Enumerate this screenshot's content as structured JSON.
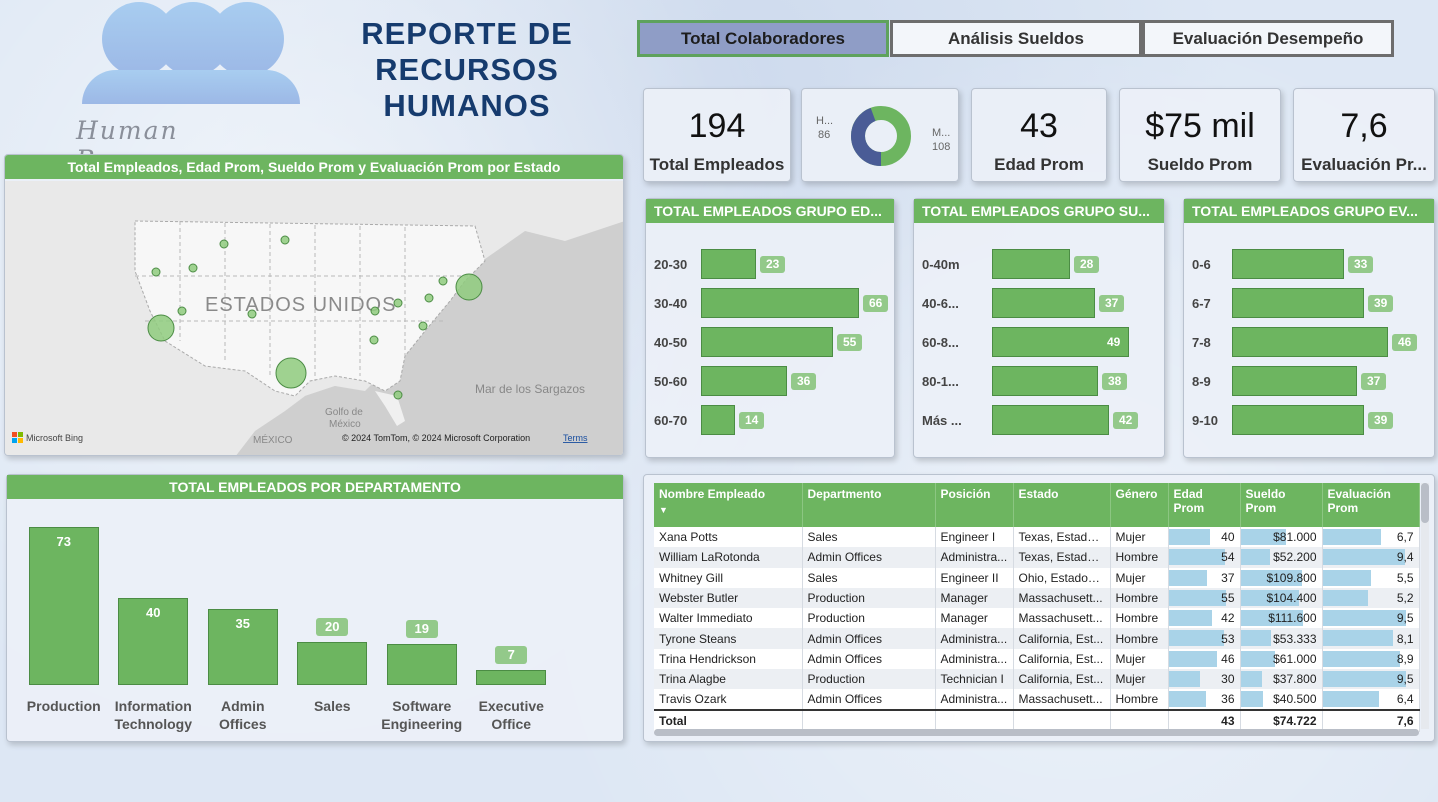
{
  "header": {
    "logo_text": "Human Resources",
    "title_lines": [
      "REPORTE DE",
      "RECURSOS",
      "HUMANOS"
    ]
  },
  "tabs": [
    {
      "label": "Total Colaboradores",
      "active": true
    },
    {
      "label": "Análisis Sueldos",
      "active": false
    },
    {
      "label": "Evaluación Desempeño",
      "active": false
    }
  ],
  "kpis": {
    "total_empleados": {
      "value": "194",
      "label": "Total Empleados"
    },
    "edad_prom": {
      "value": "43",
      "label": "Edad Prom"
    },
    "sueldo_prom": {
      "value": "$75 mil",
      "label": "Sueldo Prom"
    },
    "evaluacion_prom": {
      "value": "7,6",
      "label": "Evaluación Pr..."
    }
  },
  "gender_donut": {
    "left_label": "H...",
    "left_value": "86",
    "right_label": "M...",
    "right_value": "108",
    "colors": {
      "H": "#4a5c96",
      "M": "#6db560"
    }
  },
  "map": {
    "title": "Total Empleados, Edad Prom, Sueldo Prom y Evaluación Prom por Estado",
    "country_label": "ESTADOS UNIDOS",
    "sea_label": "Mar de los Sargazos",
    "gulf_label_1": "Golfo de",
    "gulf_label_2": "México",
    "mexico_label": "MÉXICO",
    "brand": "Microsoft Bing",
    "copyright": "© 2024 TomTom, © 2024 Microsoft Corporation",
    "terms": "Terms"
  },
  "group_edad": {
    "title": "TOTAL EMPLEADOS GRUPO ED...",
    "categories": [
      "20-30",
      "30-40",
      "40-50",
      "50-60",
      "60-70"
    ],
    "values": [
      23,
      66,
      55,
      36,
      14
    ]
  },
  "group_sueldo": {
    "title": "TOTAL EMPLEADOS GRUPO SU...",
    "categories": [
      "0-40m",
      "40-6...",
      "60-8...",
      "80-1...",
      "Más ..."
    ],
    "values": [
      28,
      37,
      49,
      38,
      42
    ]
  },
  "group_eval": {
    "title": "TOTAL EMPLEADOS GRUPO EV...",
    "categories": [
      "0-6",
      "6-7",
      "7-8",
      "8-9",
      "9-10"
    ],
    "values": [
      33,
      39,
      46,
      37,
      39
    ]
  },
  "chart_data": {
    "type": "bar",
    "title": "TOTAL EMPLEADOS POR DEPARTAMENTO",
    "categories": [
      "Production",
      "Information Technology",
      "Admin Offices",
      "Sales",
      "Software Engineering",
      "Executive Office"
    ],
    "category_lines": [
      [
        "Production"
      ],
      [
        "Information",
        "Technology"
      ],
      [
        "Admin",
        "Offices"
      ],
      [
        "Sales"
      ],
      [
        "Software",
        "Engineering"
      ],
      [
        "Executive",
        "Office"
      ]
    ],
    "values": [
      73,
      40,
      35,
      20,
      19,
      7
    ],
    "ylim": [
      0,
      73
    ],
    "color": "#6db560"
  },
  "table": {
    "columns": [
      "Nombre Empleado",
      "Departmento",
      "Posición",
      "Estado",
      "Género",
      "Edad Prom",
      "Sueldo Prom",
      "Evaluación Prom"
    ],
    "column_lines": [
      [
        "Nombre Empleado"
      ],
      [
        "Departmento"
      ],
      [
        "Posición"
      ],
      [
        "Estado"
      ],
      [
        "Género"
      ],
      [
        "Edad",
        "Prom"
      ],
      [
        "Sueldo",
        "Prom"
      ],
      [
        "Evaluación",
        "Prom"
      ]
    ],
    "sort_indicator": "▼",
    "rows": [
      {
        "name": "Xana Potts",
        "dept": "Sales",
        "pos": "Engineer I",
        "estado": "Texas, Estados...",
        "genero": "Mujer",
        "edad": "40",
        "edad_v": 40,
        "sueldo": "$81.000",
        "sueldo_v": 81000,
        "eval": "6,7",
        "eval_v": 6.7
      },
      {
        "name": "William LaRotonda",
        "dept": "Admin Offices",
        "pos": "Administra...",
        "estado": "Texas, Estados...",
        "genero": "Hombre",
        "edad": "54",
        "edad_v": 54,
        "sueldo": "$52.200",
        "sueldo_v": 52200,
        "eval": "9,4",
        "eval_v": 9.4
      },
      {
        "name": "Whitney Gill",
        "dept": "Sales",
        "pos": "Engineer II",
        "estado": "Ohio, Estados ...",
        "genero": "Mujer",
        "edad": "37",
        "edad_v": 37,
        "sueldo": "$109.800",
        "sueldo_v": 109800,
        "eval": "5,5",
        "eval_v": 5.5
      },
      {
        "name": "Webster Butler",
        "dept": "Production",
        "pos": "Manager",
        "estado": "Massachusett...",
        "genero": "Hombre",
        "edad": "55",
        "edad_v": 55,
        "sueldo": "$104.400",
        "sueldo_v": 104400,
        "eval": "5,2",
        "eval_v": 5.2
      },
      {
        "name": "Walter Immediato",
        "dept": "Production",
        "pos": "Manager",
        "estado": "Massachusett...",
        "genero": "Hombre",
        "edad": "42",
        "edad_v": 42,
        "sueldo": "$111.600",
        "sueldo_v": 111600,
        "eval": "9,5",
        "eval_v": 9.5
      },
      {
        "name": "Tyrone Steans",
        "dept": "Admin Offices",
        "pos": "Administra...",
        "estado": "California, Est...",
        "genero": "Hombre",
        "edad": "53",
        "edad_v": 53,
        "sueldo": "$53.333",
        "sueldo_v": 53333,
        "eval": "8,1",
        "eval_v": 8.1
      },
      {
        "name": "Trina Hendrickson",
        "dept": "Admin Offices",
        "pos": "Administra...",
        "estado": "California, Est...",
        "genero": "Mujer",
        "edad": "46",
        "edad_v": 46,
        "sueldo": "$61.000",
        "sueldo_v": 61000,
        "eval": "8,9",
        "eval_v": 8.9
      },
      {
        "name": "Trina Alagbe",
        "dept": "Production",
        "pos": "Technician I",
        "estado": "California, Est...",
        "genero": "Mujer",
        "edad": "30",
        "edad_v": 30,
        "sueldo": "$37.800",
        "sueldo_v": 37800,
        "eval": "9,5",
        "eval_v": 9.5
      },
      {
        "name": "Travis Ozark",
        "dept": "Admin Offices",
        "pos": "Administra...",
        "estado": "Massachusett...",
        "genero": "Hombre",
        "edad": "36",
        "edad_v": 36,
        "sueldo": "$40.500",
        "sueldo_v": 40500,
        "eval": "6,4",
        "eval_v": 6.4
      }
    ],
    "total": {
      "label": "Total",
      "edad": "43",
      "sueldo": "$74.722",
      "eval": "7,6"
    }
  }
}
